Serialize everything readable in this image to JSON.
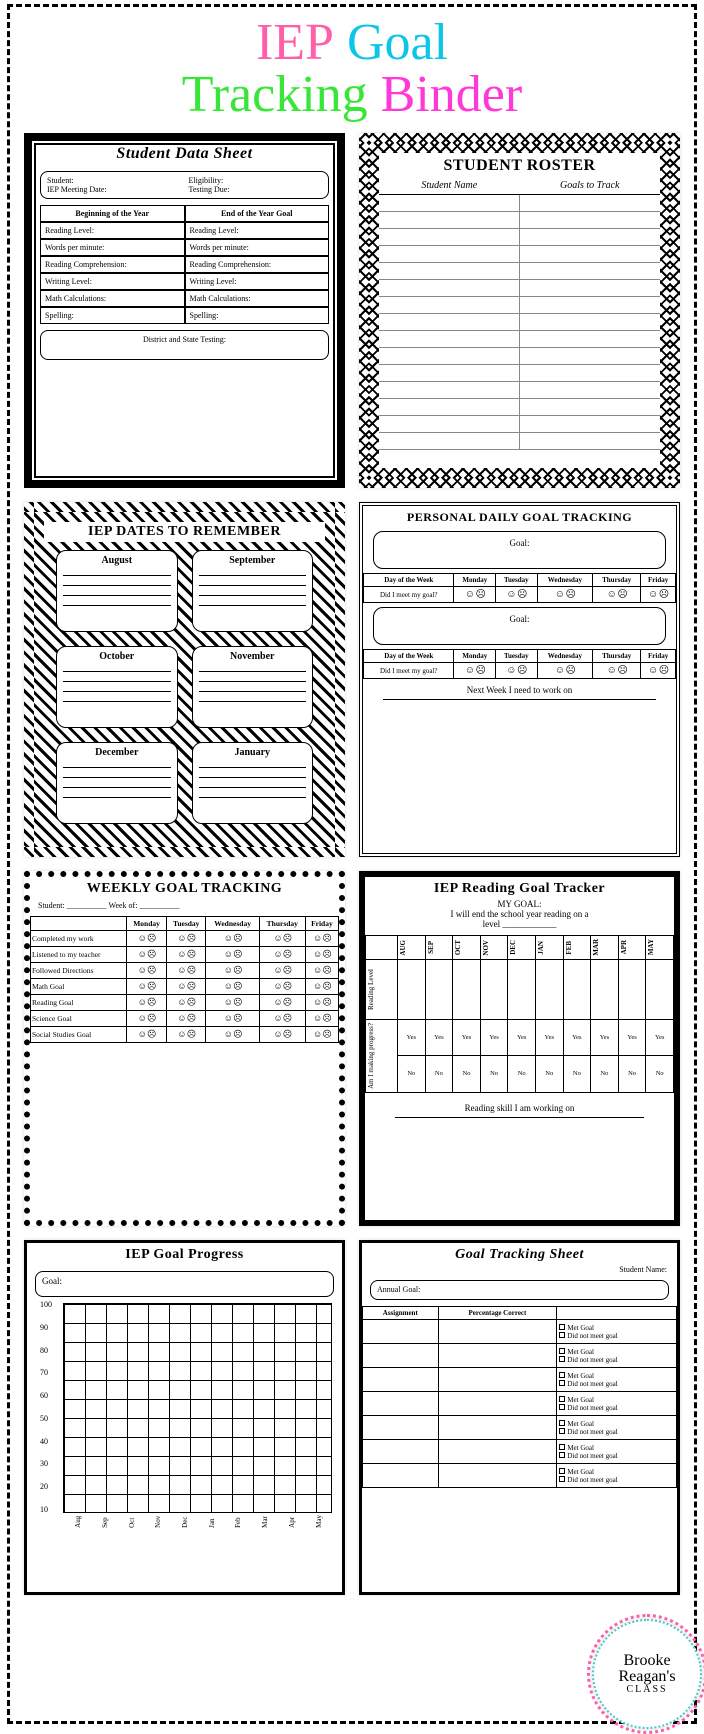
{
  "title": {
    "parts": [
      {
        "text": "IEP",
        "color": "#ff5ea8"
      },
      {
        "text": " Goal",
        "color": "#0dc6e7"
      },
      {
        "text": "Tracking",
        "color": "#37e637"
      },
      {
        "text": " Binder",
        "color": "#ff38d8"
      }
    ]
  },
  "colors": {
    "dash": "#000000",
    "bg": "#ffffff"
  },
  "cards": {
    "data_sheet": {
      "title": "Student Data Sheet",
      "top_fields": [
        [
          "Student:",
          "Eligibility:"
        ],
        [
          "IEP Meeting Date:",
          "Testing Due:"
        ]
      ],
      "cols": [
        "Beginning of the Year",
        "End of the Year Goal"
      ],
      "rows": [
        "Reading Level:",
        "Words per minute:",
        "Reading Comprehension:",
        "Writing Level:",
        "Math Calculations:",
        "Spelling:"
      ],
      "footer": "District and State Testing:"
    },
    "roster": {
      "title": "STUDENT ROSTER",
      "headers": [
        "Student Name",
        "Goals to Track"
      ],
      "row_count": 15
    },
    "dates": {
      "title": "IEP DATES TO REMEMBER",
      "months": [
        "August",
        "September",
        "October",
        "November",
        "December",
        "January"
      ]
    },
    "daily": {
      "title": "PERSONAL DAILY GOAL TRACKING",
      "goal_label": "Goal:",
      "days": [
        "Monday",
        "Tuesday",
        "Wednesday",
        "Thursday",
        "Friday"
      ],
      "row1": "Day of the Week",
      "row2": "Did I meet my goal?",
      "footer": "Next Week I need to work on"
    },
    "weekly": {
      "title": "WEEKLY GOAL TRACKING",
      "sub": [
        "Student:",
        "Week of:"
      ],
      "days": [
        "Monday",
        "Tuesday",
        "Wednesday",
        "Thursday",
        "Friday"
      ],
      "rows": [
        "Completed my work",
        "Listened to my teacher",
        "Followed Directions",
        "Math Goal",
        "Reading Goal",
        "Science Goal",
        "Social Studies Goal"
      ]
    },
    "reading": {
      "title": "IEP Reading Goal Tracker",
      "my_goal": "MY GOAL:",
      "line": "I will end the school year reading on a",
      "line2": "level ____________",
      "months": [
        "AUG",
        "SEP",
        "OCT",
        "NOV",
        "DEC",
        "JAN",
        "FEB",
        "MAR",
        "APR",
        "MAY"
      ],
      "side1": "Reading Level",
      "side2": "Am I making progress?",
      "yes": "Yes",
      "no": "No",
      "footer": "Reading skill I am working on"
    },
    "progress": {
      "title": "IEP Goal Progress",
      "goal_label": "Goal:",
      "y": [
        "100",
        "90",
        "80",
        "70",
        "60",
        "50",
        "40",
        "30",
        "20",
        "10"
      ],
      "x": [
        "Aug",
        "Sep",
        "Oct",
        "Nov",
        "Dec",
        "Jan",
        "Feb",
        "Mar",
        "Apr",
        "May"
      ]
    },
    "sheet": {
      "title": "Goal Tracking Sheet",
      "nm": "Student Name:",
      "ag": "Annual Goal:",
      "cols": [
        "Assignment",
        "Percentage Correct",
        ""
      ],
      "opt1": "Met Goal",
      "opt2": "Did not meet goal",
      "rows": 7
    }
  },
  "badge": {
    "l1": "Brooke",
    "l2": "Reagan's",
    "l3": "CLASS"
  }
}
